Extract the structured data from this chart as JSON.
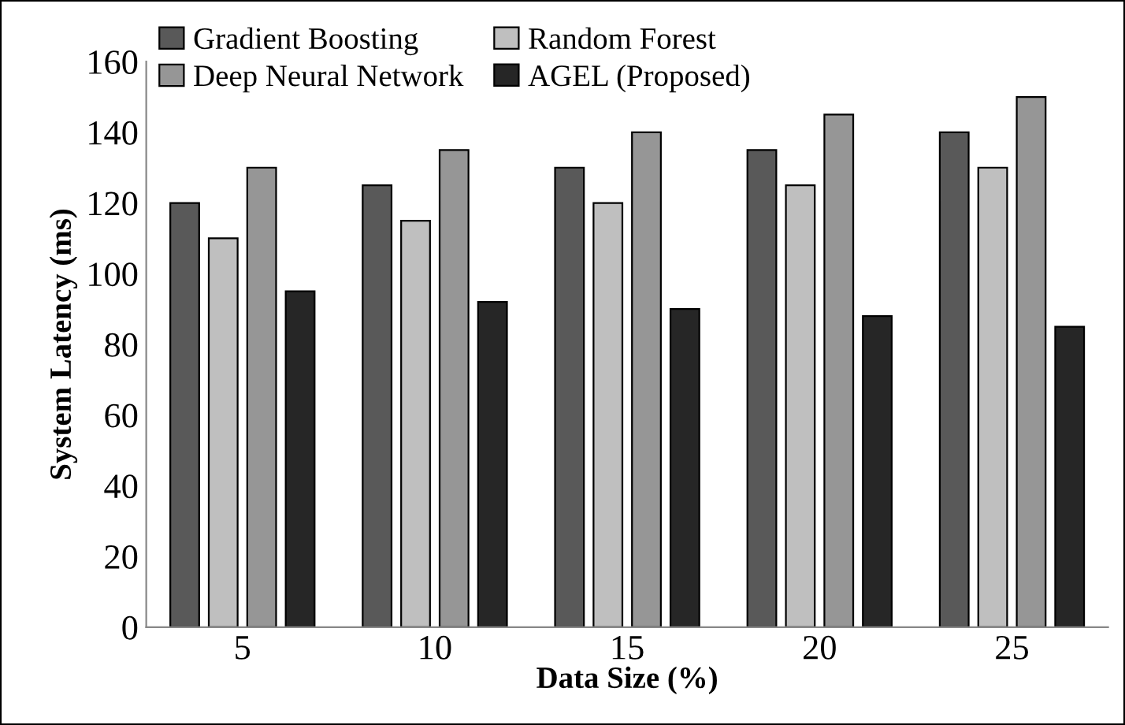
{
  "chart_data": {
    "type": "bar",
    "xlabel": "Data Size (%)",
    "ylabel": "System Latency (ms)",
    "categories": [
      "5",
      "10",
      "15",
      "20",
      "25"
    ],
    "series": [
      {
        "name": "Gradient Boosting",
        "color": "#595959",
        "values": [
          120,
          125,
          130,
          135,
          140
        ]
      },
      {
        "name": "Random Forest",
        "color": "#bfbfbf",
        "values": [
          110,
          115,
          120,
          125,
          130
        ]
      },
      {
        "name": "Deep Neural Network",
        "color": "#969696",
        "values": [
          130,
          135,
          140,
          145,
          150
        ]
      },
      {
        "name": "AGEL (Proposed)",
        "color": "#262626",
        "values": [
          95,
          92,
          90,
          88,
          85
        ]
      }
    ],
    "ylim": [
      0,
      160
    ],
    "yticks": [
      0,
      20,
      40,
      60,
      80,
      100,
      120,
      140,
      160
    ],
    "grid": false,
    "legend": "top left"
  }
}
